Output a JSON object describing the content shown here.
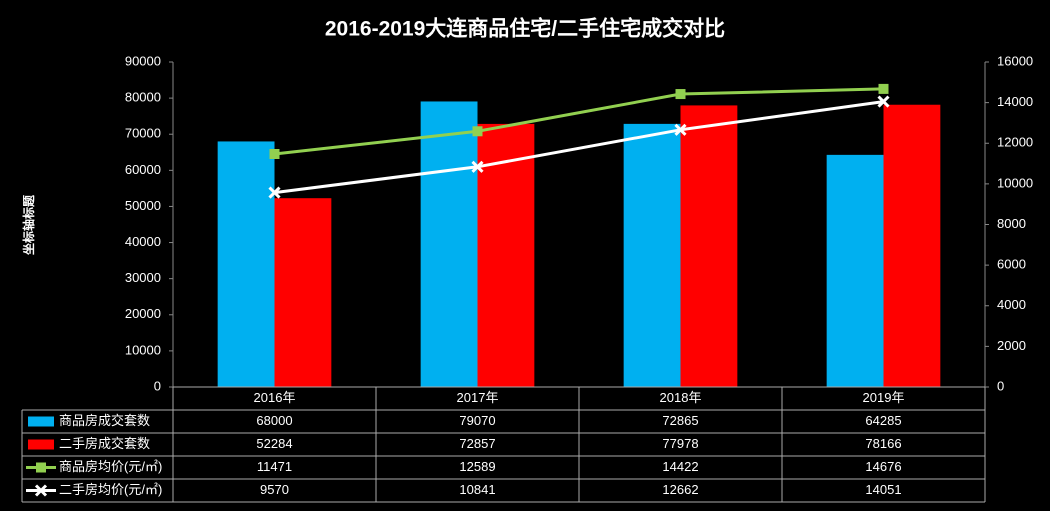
{
  "chart_data": {
    "type": "bar",
    "title": "2016-2019大连商品住宅/二手住宅成交对比",
    "y_axis_label": "坐标轴标题",
    "categories": [
      "2016年",
      "2017年",
      "2018年",
      "2019年"
    ],
    "series": [
      {
        "name": "商品房成交套数",
        "type": "bar",
        "color": "#00b0f0",
        "values": [
          68000,
          79070,
          72865,
          64285
        ]
      },
      {
        "name": "二手房成交套数",
        "type": "bar",
        "color": "#ff0000",
        "values": [
          52284,
          72857,
          77978,
          78166
        ]
      },
      {
        "name": "商品房均价(元/㎡)",
        "type": "line",
        "axis": "y2",
        "marker": "square",
        "color": "#92d050",
        "values": [
          11471,
          12589,
          14422,
          14676
        ]
      },
      {
        "name": "二手房均价(元/㎡)",
        "type": "line",
        "axis": "y2",
        "marker": "x",
        "color": "#ffffff",
        "values": [
          9570,
          10841,
          12662,
          14051
        ]
      }
    ],
    "ylim": [
      0,
      90000
    ],
    "yticks": [
      0,
      10000,
      20000,
      30000,
      40000,
      50000,
      60000,
      70000,
      80000,
      90000
    ],
    "y2lim": [
      0,
      16000
    ],
    "y2ticks": [
      0,
      2000,
      4000,
      6000,
      8000,
      10000,
      12000,
      14000,
      16000
    ],
    "data_table": true
  }
}
